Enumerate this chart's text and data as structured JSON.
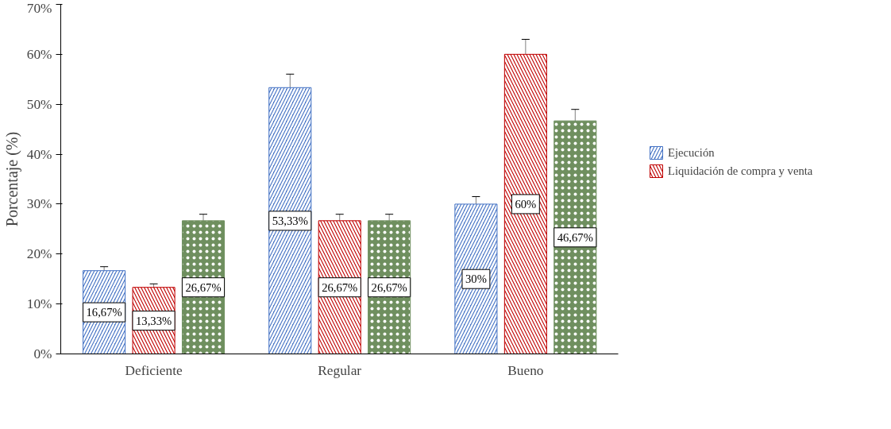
{
  "chart_data": {
    "type": "bar",
    "ylabel": "Porcentaje (%)",
    "categories": [
      "Deficiente",
      "Regular",
      "Bueno"
    ],
    "series": [
      {
        "name": "Ejecución",
        "color": "#4472c4",
        "values": [
          16.67,
          53.33,
          30
        ],
        "errors": [
          0.8,
          2.7,
          1.5
        ],
        "value_labels": [
          "16,67%",
          "53,33%",
          "30%"
        ]
      },
      {
        "name": "Liquidación de compra y venta",
        "color": "#c00000",
        "values": [
          13.33,
          26.67,
          60
        ],
        "errors": [
          0.7,
          1.3,
          3
        ],
        "value_labels": [
          "13,33%",
          "26,67%",
          "60%"
        ]
      },
      {
        "color": "#6f8f5f",
        "values": [
          26.67,
          26.67,
          46.67
        ],
        "errors": [
          1.3,
          1.3,
          2.3
        ],
        "value_labels": [
          "26,67%",
          "26,67%",
          "46,67%"
        ]
      }
    ],
    "ylim": [
      0,
      70
    ],
    "yticks": [
      {
        "value": 0,
        "label": "0%"
      },
      {
        "value": 10,
        "label": "10%"
      },
      {
        "value": 20,
        "label": "20%"
      },
      {
        "value": 30,
        "label": "30%"
      },
      {
        "value": 40,
        "label": "40%"
      },
      {
        "value": 50,
        "label": "50%"
      },
      {
        "value": 60,
        "label": "60%"
      },
      {
        "value": 70,
        "label": "70%"
      }
    ],
    "grid": false,
    "legend": "right"
  }
}
